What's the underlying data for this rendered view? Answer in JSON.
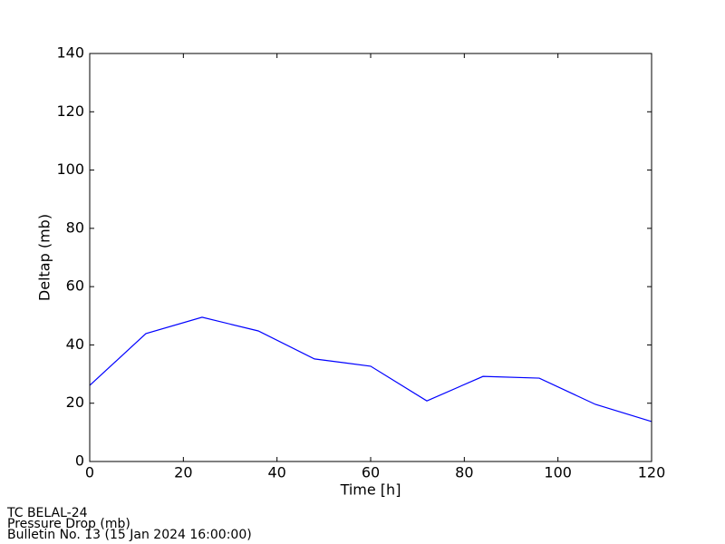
{
  "chart_data": {
    "type": "line",
    "x_label": "Time [h]",
    "y_label": "Deltap (mb)",
    "x": [
      0,
      12,
      24,
      36,
      48,
      60,
      72,
      84,
      96,
      108,
      120
    ],
    "series": [
      {
        "name": "Deltap",
        "color": "#0000ff",
        "values": [
          26.1,
          43.9,
          49.5,
          44.8,
          35.2,
          32.7,
          20.8,
          29.2,
          28.6,
          19.6,
          13.7
        ]
      }
    ],
    "xlim": [
      0,
      120
    ],
    "xticks": [
      0,
      20,
      40,
      60,
      80,
      100,
      120
    ],
    "ylim": [
      0,
      140
    ],
    "yticks": [
      0,
      20,
      40,
      60,
      80,
      100,
      120,
      140
    ],
    "grid": false
  },
  "footer": [
    "TC BELAL-24",
    "Pressure Drop (mb)",
    "Bulletin No. 13 (15 Jan 2024  16:00:00)"
  ]
}
